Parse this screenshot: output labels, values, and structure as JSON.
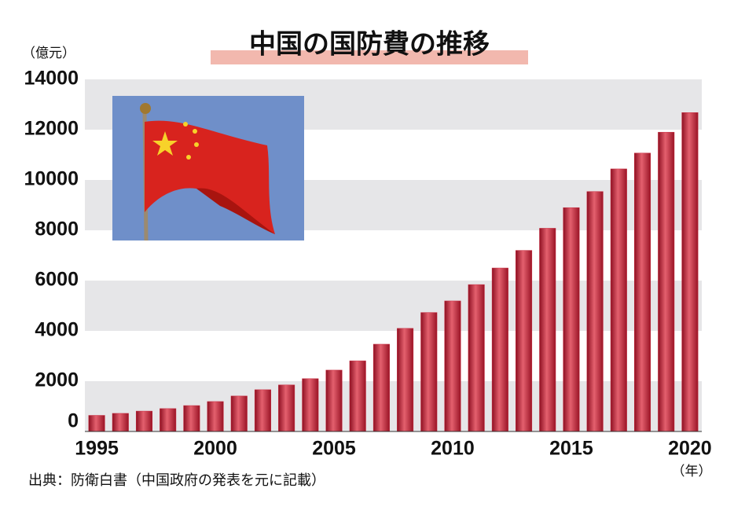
{
  "chart_data": {
    "type": "bar",
    "title": "中国の国防費の推移",
    "y_unit": "（億元）",
    "x_unit": "（年）",
    "source": "出典：防衛白書（中国政府の発表を元に記載）",
    "categories": [
      "1995",
      null,
      null,
      null,
      null,
      "2000",
      null,
      null,
      null,
      null,
      "2005",
      null,
      null,
      null,
      null,
      "2010",
      null,
      null,
      null,
      null,
      "2015",
      null,
      null,
      null,
      null,
      "2020"
    ],
    "values": [
      640,
      720,
      810,
      910,
      1030,
      1190,
      1410,
      1660,
      1850,
      2100,
      2440,
      2810,
      3470,
      4100,
      4730,
      5190,
      5840,
      6500,
      7200,
      8080,
      8900,
      9540,
      10440,
      11070,
      11900,
      12680
    ],
    "color": "#c8283c",
    "ylim": [
      0,
      14000
    ],
    "yticks": [
      0,
      2000,
      4000,
      6000,
      8000,
      10000,
      12000,
      14000
    ],
    "grid": true
  }
}
